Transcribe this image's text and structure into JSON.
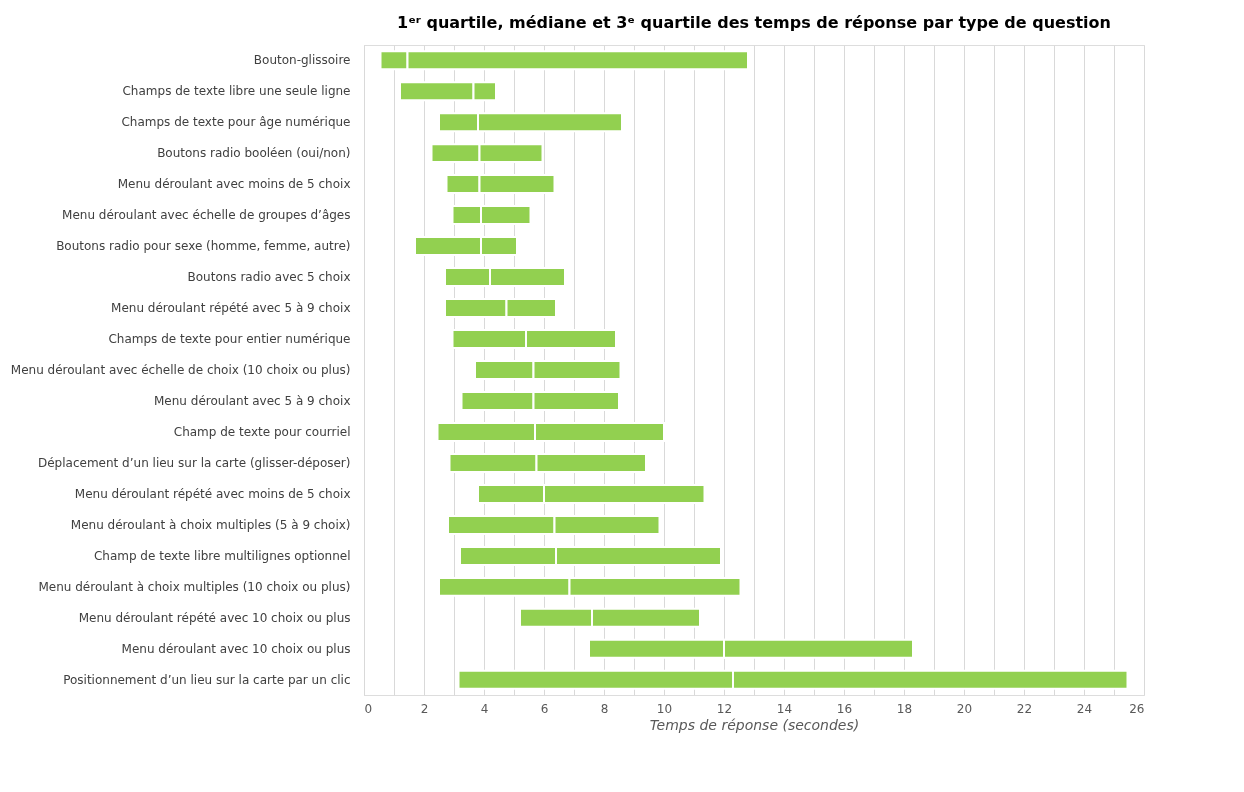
{
  "chart_data": {
    "type": "bar",
    "orientation": "horizontal",
    "title": "1ᵉʳ quartile, médiane et 3ᵉ quartile des temps de réponse par type de question",
    "xlabel": "Temps de réponse (secondes)",
    "categories": [
      "Bouton-glissoire",
      "Champs de texte libre une seule ligne",
      "Champs de texte pour âge numérique",
      "Boutons radio booléen (oui/non)",
      "Menu déroulant avec moins de 5 choix",
      "Menu déroulant avec échelle de groupes d’âges",
      "Boutons radio pour sexe (homme, femme, autre)",
      "Boutons radio avec 5 choix",
      "Menu déroulant répété avec 5 à 9 choix",
      "Champs de texte pour entier numérique",
      "Menu déroulant avec échelle de choix (10 choix ou plus)",
      "Menu déroulant avec 5 à 9 choix",
      "Champ de texte pour courriel",
      "Déplacement d’un lieu sur la carte (glisser-déposer)",
      "Menu déroulant répété avec moins de 5 choix",
      "Menu déroulant à choix multiples (5 à 9 choix)",
      "Champ de texte libre multilignes optionnel",
      "Menu déroulant à choix multiples (10 choix ou plus)",
      "Menu déroulant répété avec 10 choix ou plus",
      "Menu déroulant avec 10 choix ou plus",
      "Positionnement d’un lieu sur la carte par un clic"
    ],
    "series": [
      {
        "color": "#92d050",
        "base": [
          0.55,
          1.2,
          2.5,
          2.25,
          2.75,
          2.95,
          1.7,
          2.7,
          2.7,
          2.95,
          3.7,
          3.25,
          2.45,
          2.85,
          3.8,
          2.8,
          3.2,
          2.5,
          5.2,
          7.5,
          3.15
        ],
        "values": [
          0.9,
          2.45,
          1.3,
          1.6,
          1.1,
          0.95,
          2.2,
          1.5,
          2.05,
          2.45,
          1.95,
          2.4,
          3.25,
          2.9,
          2.2,
          3.55,
          3.2,
          4.35,
          2.4,
          4.5,
          9.15
        ]
      },
      {
        "color": "#92d050",
        "base": [
          1.45,
          3.65,
          3.8,
          3.85,
          3.85,
          3.9,
          3.9,
          4.2,
          4.75,
          5.4,
          5.65,
          5.65,
          5.7,
          5.75,
          6.0,
          6.35,
          6.4,
          6.85,
          7.6,
          12.0,
          12.3
        ],
        "values": [
          11.35,
          0.75,
          4.8,
          2.1,
          2.5,
          1.65,
          1.2,
          2.5,
          1.65,
          3.0,
          2.9,
          2.85,
          4.3,
          3.65,
          5.35,
          3.5,
          5.5,
          5.7,
          3.6,
          6.3,
          13.15
        ]
      }
    ],
    "xlim": [
      0,
      26
    ],
    "xticks": [
      0,
      {
        "value": 1,
        "label": null
      },
      2,
      {
        "value": 3,
        "label": null
      },
      4,
      {
        "value": 5,
        "label": null
      },
      6,
      {
        "value": 7,
        "label": null
      },
      8,
      {
        "value": 9,
        "label": null
      },
      10,
      {
        "value": 11,
        "label": null
      },
      12,
      {
        "value": 13,
        "label": null
      },
      14,
      {
        "value": 15,
        "label": null
      },
      16,
      {
        "value": 17,
        "label": null
      },
      18,
      {
        "value": 19,
        "label": null
      },
      20,
      {
        "value": 21,
        "label": null
      },
      22,
      {
        "value": 23,
        "label": null
      },
      24,
      {
        "value": 25,
        "label": null
      },
      26
    ],
    "grid": "x",
    "legend": false
  }
}
